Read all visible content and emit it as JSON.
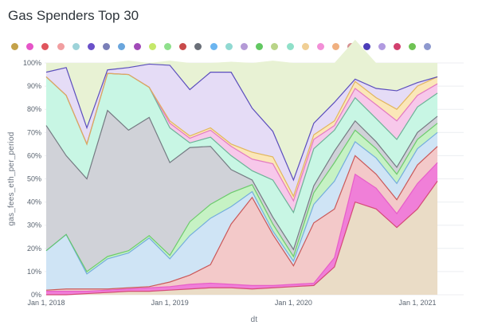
{
  "chart_data": {
    "type": "area",
    "stacked_percent": true,
    "title": "Gas Spenders Top 30",
    "xlabel": "dt",
    "ylabel": "gas_fees_eth_per_period",
    "ylim": [
      0,
      100
    ],
    "yticks": [
      "0%",
      "10%",
      "20%",
      "30%",
      "40%",
      "50%",
      "60%",
      "70%",
      "80%",
      "90%",
      "100%"
    ],
    "xticks": [
      {
        "date": "2018-01-01",
        "label": "Jan 1, 2018"
      },
      {
        "date": "2019-01-01",
        "label": "Jan 1, 2019"
      },
      {
        "date": "2020-01-01",
        "label": "Jan 1, 2020"
      },
      {
        "date": "2021-01-01",
        "label": "Jan 1, 2021"
      }
    ],
    "x": [
      "2018-01-01",
      "2018-03-01",
      "2018-05-01",
      "2018-07-01",
      "2018-09-01",
      "2018-11-01",
      "2019-01-01",
      "2019-03-01",
      "2019-05-01",
      "2019-07-01",
      "2019-09-01",
      "2019-11-01",
      "2020-01-01",
      "2020-03-01",
      "2020-05-01",
      "2020-07-01",
      "2020-09-01",
      "2020-11-01",
      "2021-01-01",
      "2021-03-01"
    ],
    "grid": true,
    "legend_position": "top",
    "legend_colors": [
      "#c4a24a",
      "#e655c8",
      "#e0555d",
      "#f19ea0",
      "#9dd3d9",
      "#6a50c9",
      "#7a7fb8",
      "#6aa6dd",
      "#a14ab8",
      "#c5e86a",
      "#8fe08c",
      "#c84a4a",
      "#6a6f78",
      "#6bb5f0",
      "#90d9d2",
      "#b49ad6",
      "#62c862",
      "#b9d488",
      "#8fe0c9",
      "#f0cf95",
      "#f28fd7",
      "#f0b080",
      "#d58f91",
      "#4b3db8",
      "#b19ae0",
      "#d2406e",
      "#6fc354",
      "#8e99cf"
    ],
    "series": [
      {
        "color": "#eadcc6",
        "values": [
          0.0,
          0.0,
          0.5,
          1.0,
          1.5,
          1.5,
          2.0,
          2.5,
          3.0,
          3.0,
          2.5,
          3.0,
          3.5,
          4.0,
          12.0,
          40.0,
          37.0,
          29.0,
          37.0,
          49.0
        ]
      },
      {
        "color": "#f07fd8",
        "values": [
          1.5,
          1.5,
          1.0,
          1.0,
          1.0,
          1.5,
          1.5,
          2.0,
          2.0,
          1.5,
          1.5,
          1.0,
          1.0,
          1.0,
          4.0,
          12.0,
          9.0,
          6.0,
          11.0,
          8.0
        ]
      },
      {
        "color": "#f3c9c9",
        "values": [
          0.5,
          1.0,
          1.0,
          0.5,
          0.5,
          0.5,
          2.0,
          4.0,
          8.0,
          26.0,
          38.0,
          22.0,
          8.0,
          26.0,
          21.0,
          8.0,
          6.0,
          6.0,
          8.0,
          7.0
        ]
      },
      {
        "color": "#cfe4f5",
        "values": [
          17.0,
          23.5,
          6.5,
          13.0,
          15.0,
          21.0,
          10.0,
          17.0,
          20.0,
          7.5,
          2.5,
          1.5,
          2.0,
          8.0,
          12.0,
          6.0,
          7.0,
          7.0,
          7.0,
          6.0
        ]
      },
      {
        "color": "#c6f2c4",
        "values": [
          0.0,
          0.0,
          1.0,
          1.0,
          1.0,
          1.0,
          1.5,
          6.0,
          6.0,
          6.0,
          3.0,
          3.0,
          2.0,
          5.0,
          8.0,
          5.0,
          4.0,
          4.0,
          4.0,
          4.0
        ]
      },
      {
        "color": "#d0d2d8",
        "values": [
          54.0,
          34.0,
          40.0,
          63.0,
          52.0,
          51.0,
          40.0,
          32.0,
          25.0,
          10.0,
          2.0,
          3.0,
          3.0,
          3.0,
          5.0,
          4.0,
          3.0,
          3.0,
          3.0,
          3.0
        ]
      },
      {
        "color": "#c8f6e4",
        "values": [
          21.0,
          26.0,
          15.0,
          16.0,
          24.0,
          13.0,
          15.0,
          2.0,
          4.0,
          6.0,
          4.0,
          16.0,
          16.0,
          16.0,
          9.0,
          10.0,
          10.0,
          12.0,
          11.0,
          10.0
        ]
      },
      {
        "color": "#f7c8ea",
        "values": [
          0.0,
          0.0,
          0.0,
          0.0,
          0.0,
          0.0,
          2.0,
          2.0,
          3.0,
          4.0,
          5.0,
          7.0,
          5.0,
          4.0,
          2.0,
          4.0,
          6.0,
          8.0,
          5.0,
          4.0
        ]
      },
      {
        "color": "#fbe7b8",
        "values": [
          0.0,
          0.0,
          0.0,
          0.0,
          0.0,
          0.0,
          1.0,
          1.0,
          1.0,
          1.0,
          3.0,
          3.0,
          2.0,
          2.0,
          2.0,
          3.0,
          3.0,
          5.0,
          4.0,
          3.0
        ]
      },
      {
        "color": "#e5dcf6",
        "values": [
          2.0,
          12.0,
          7.0,
          1.5,
          3.0,
          10.0,
          24.0,
          20.0,
          24.0,
          31.0,
          19.0,
          11.0,
          7.0,
          5.0,
          8.0,
          1.0,
          4.0,
          8.0,
          1.5,
          0.0
        ]
      },
      {
        "color": "#e8f2d4",
        "values": [
          4.0,
          2.0,
          28.0,
          3.0,
          3.0,
          0.5,
          2.0,
          11.5,
          4.0,
          4.5,
          19.5,
          30.5,
          50.5,
          26.0,
          17.0,
          17.0,
          11.0,
          12.0,
          8.5,
          6.0
        ]
      }
    ]
  }
}
